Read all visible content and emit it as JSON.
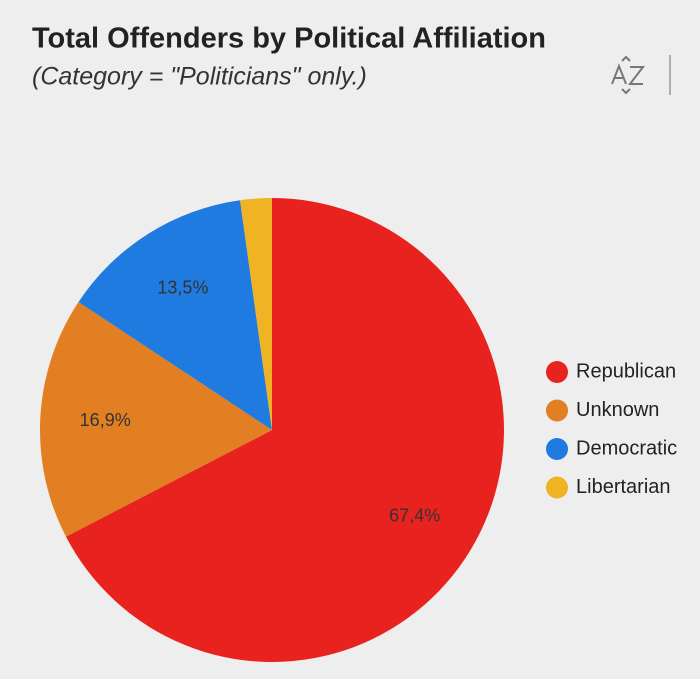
{
  "chart_data": {
    "type": "pie",
    "title": "Total Offenders by Political Affiliation",
    "subtitle": "(Category = \"Politicians\" only.)",
    "categories": [
      "Republican",
      "Unknown",
      "Democratic",
      "Libertarian"
    ],
    "values": [
      67.4,
      16.9,
      13.5,
      2.2
    ],
    "value_labels": [
      "67,4%",
      "16,9%",
      "13,5%",
      null
    ],
    "colors": [
      "#e8231f",
      "#e17f22",
      "#1f7be0",
      "#f0b323"
    ],
    "start_angle": 0,
    "direction": "clockwise",
    "legend": "right"
  }
}
